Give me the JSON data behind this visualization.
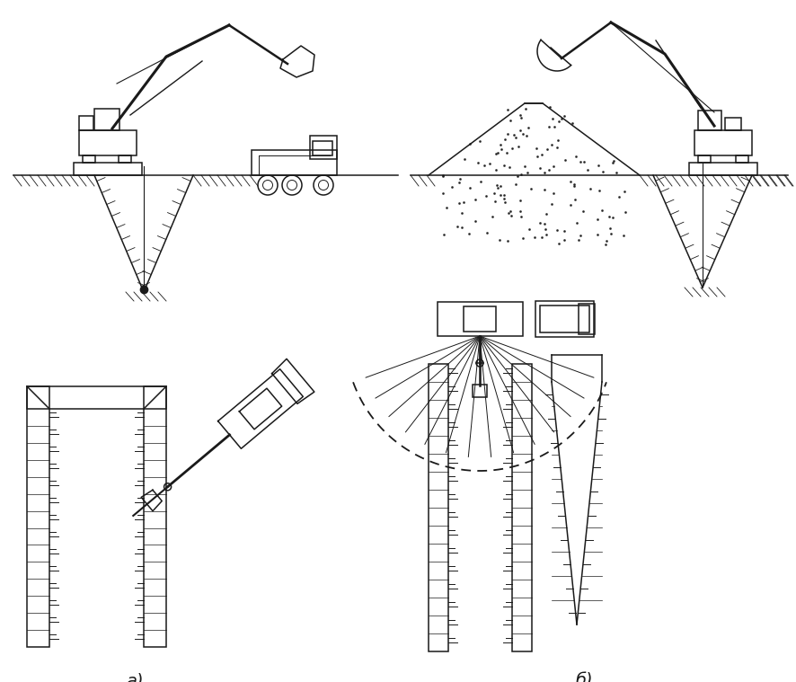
{
  "label_a": "а)",
  "label_b": "б)",
  "bg_color": "#ffffff",
  "line_color": "#1a1a1a",
  "fig_width": 8.87,
  "fig_height": 7.59,
  "dpi": 100
}
